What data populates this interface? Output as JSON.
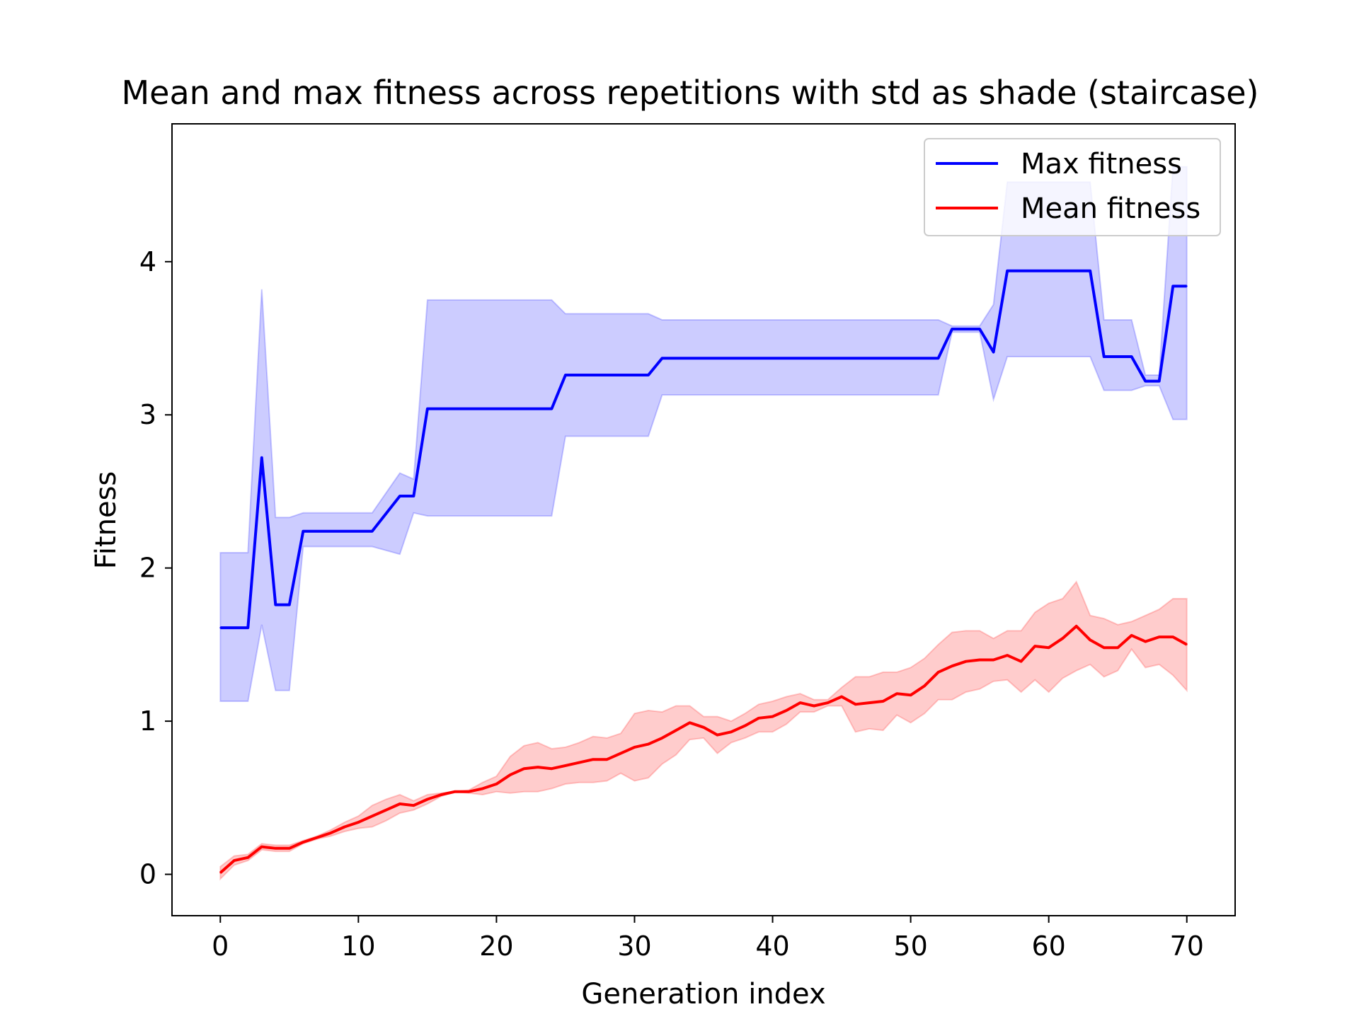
{
  "chart_data": {
    "type": "line",
    "title": "Mean and max fitness across repetitions with std as shade (staircase)",
    "xlabel": "Generation index",
    "ylabel": "Fitness",
    "xlim": [
      -3.5,
      73.5
    ],
    "ylim": [
      -0.27,
      4.9
    ],
    "xticks": [
      0,
      10,
      20,
      30,
      40,
      50,
      60,
      70
    ],
    "yticks": [
      0,
      1,
      2,
      3,
      4
    ],
    "grid": false,
    "legend_position": "top-right",
    "series": [
      {
        "name": "Max fitness",
        "color": "#0000ff",
        "band_color": "#0000ff",
        "x": [
          0,
          2,
          3,
          4,
          5,
          6,
          11,
          13,
          14,
          15,
          24,
          25,
          31,
          32,
          52,
          53,
          55,
          56,
          57,
          63,
          64,
          66,
          67,
          68,
          69,
          70
        ],
        "y": [
          1.61,
          1.61,
          2.72,
          1.76,
          1.76,
          2.24,
          2.24,
          2.47,
          2.47,
          3.04,
          3.04,
          3.26,
          3.26,
          3.37,
          3.37,
          3.56,
          3.56,
          3.41,
          3.94,
          3.94,
          3.38,
          3.38,
          3.22,
          3.22,
          3.84,
          3.84
        ],
        "upper": [
          2.1,
          2.1,
          3.82,
          2.33,
          2.33,
          2.36,
          2.36,
          2.62,
          2.58,
          3.75,
          3.75,
          3.66,
          3.66,
          3.62,
          3.62,
          3.58,
          3.58,
          3.72,
          4.52,
          4.52,
          3.62,
          3.62,
          3.26,
          3.26,
          4.62,
          4.62
        ],
        "lower": [
          1.13,
          1.13,
          1.63,
          1.2,
          1.2,
          2.14,
          2.14,
          2.09,
          2.36,
          2.34,
          2.34,
          2.86,
          2.86,
          3.13,
          3.13,
          3.54,
          3.54,
          3.1,
          3.38,
          3.38,
          3.16,
          3.16,
          3.19,
          3.19,
          2.97,
          2.97
        ]
      },
      {
        "name": "Mean fitness",
        "color": "#ff0000",
        "band_color": "#ff0000",
        "x": [
          0,
          1,
          2,
          3,
          4,
          5,
          6,
          7,
          8,
          9,
          10,
          11,
          12,
          13,
          14,
          15,
          16,
          17,
          18,
          19,
          20,
          21,
          22,
          23,
          24,
          25,
          26,
          27,
          28,
          29,
          30,
          31,
          32,
          33,
          34,
          35,
          36,
          37,
          38,
          39,
          40,
          41,
          42,
          43,
          44,
          45,
          46,
          47,
          48,
          49,
          50,
          51,
          52,
          53,
          54,
          55,
          56,
          57,
          58,
          59,
          60,
          61,
          62,
          63,
          64,
          65,
          66,
          67,
          68,
          69,
          70
        ],
        "y": [
          0.01,
          0.09,
          0.11,
          0.18,
          0.17,
          0.17,
          0.21,
          0.24,
          0.27,
          0.31,
          0.34,
          0.38,
          0.42,
          0.46,
          0.45,
          0.49,
          0.52,
          0.54,
          0.54,
          0.56,
          0.59,
          0.65,
          0.69,
          0.7,
          0.69,
          0.71,
          0.73,
          0.75,
          0.75,
          0.79,
          0.83,
          0.85,
          0.89,
          0.94,
          0.99,
          0.96,
          0.91,
          0.93,
          0.97,
          1.02,
          1.03,
          1.07,
          1.12,
          1.1,
          1.12,
          1.16,
          1.11,
          1.12,
          1.13,
          1.18,
          1.17,
          1.23,
          1.32,
          1.36,
          1.39,
          1.4,
          1.4,
          1.43,
          1.39,
          1.49,
          1.48,
          1.54,
          1.62,
          1.53,
          1.48,
          1.48,
          1.56,
          1.52,
          1.55,
          1.55,
          1.5
        ],
        "upper": [
          0.05,
          0.12,
          0.13,
          0.2,
          0.19,
          0.19,
          0.22,
          0.25,
          0.29,
          0.34,
          0.38,
          0.45,
          0.49,
          0.52,
          0.48,
          0.52,
          0.53,
          0.54,
          0.55,
          0.6,
          0.64,
          0.77,
          0.84,
          0.86,
          0.82,
          0.83,
          0.86,
          0.9,
          0.89,
          0.92,
          1.05,
          1.07,
          1.06,
          1.1,
          1.1,
          1.03,
          1.03,
          1.0,
          1.05,
          1.11,
          1.13,
          1.16,
          1.18,
          1.14,
          1.14,
          1.22,
          1.29,
          1.29,
          1.32,
          1.32,
          1.35,
          1.41,
          1.5,
          1.58,
          1.59,
          1.59,
          1.54,
          1.59,
          1.59,
          1.71,
          1.77,
          1.8,
          1.91,
          1.69,
          1.67,
          1.63,
          1.65,
          1.69,
          1.73,
          1.8,
          1.8
        ],
        "lower": [
          -0.03,
          0.06,
          0.09,
          0.16,
          0.15,
          0.15,
          0.2,
          0.23,
          0.25,
          0.28,
          0.3,
          0.31,
          0.35,
          0.4,
          0.42,
          0.46,
          0.51,
          0.54,
          0.53,
          0.52,
          0.54,
          0.53,
          0.54,
          0.54,
          0.56,
          0.59,
          0.6,
          0.6,
          0.61,
          0.66,
          0.61,
          0.63,
          0.72,
          0.78,
          0.88,
          0.89,
          0.79,
          0.86,
          0.89,
          0.93,
          0.93,
          0.98,
          1.06,
          1.06,
          1.1,
          1.1,
          0.93,
          0.95,
          0.94,
          1.04,
          0.99,
          1.05,
          1.14,
          1.14,
          1.19,
          1.21,
          1.26,
          1.27,
          1.19,
          1.27,
          1.19,
          1.28,
          1.33,
          1.37,
          1.29,
          1.33,
          1.47,
          1.35,
          1.37,
          1.3,
          1.2
        ]
      }
    ]
  }
}
